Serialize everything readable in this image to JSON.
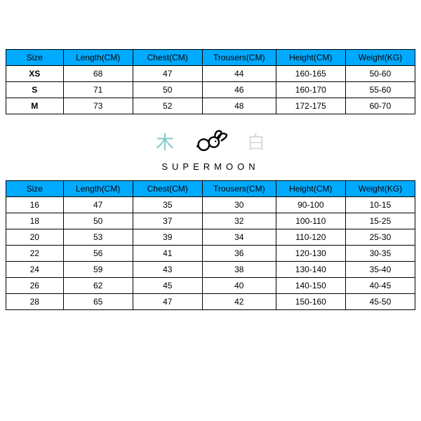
{
  "colors": {
    "header_bg": "#00aaff",
    "border": "#000000",
    "text": "#000000",
    "cjk_left_color": "#7fc9c9",
    "cjk_right_color": "#d9dadb",
    "background": "#ffffff"
  },
  "typography": {
    "cell_fontsize": 12,
    "brand_letter_spacing": 6,
    "brand_fontsize": 13,
    "cjk_fontsize": 26
  },
  "table_common": {
    "type": "table",
    "columns": [
      "Size",
      "Length(CM)",
      "Chest(CM)",
      "Trousers(CM)",
      "Height(CM)",
      "Weight(KG)"
    ],
    "col_widths_pct": [
      14,
      17,
      17,
      18,
      17,
      17
    ],
    "header_bg": "#00aaff",
    "border_color": "#000000"
  },
  "table1": {
    "rows": [
      [
        "XS",
        "68",
        "47",
        "44",
        "160-165",
        "50-60"
      ],
      [
        "S",
        "71",
        "50",
        "46",
        "160-170",
        "55-60"
      ],
      [
        "M",
        "73",
        "52",
        "48",
        "172-175",
        "60-70"
      ]
    ],
    "first_col_bold": true
  },
  "logo": {
    "cjk_left": "木",
    "cjk_right": "白",
    "brand_text": "SUPERMOON"
  },
  "table2": {
    "rows": [
      [
        "16",
        "47",
        "35",
        "30",
        "90-100",
        "10-15"
      ],
      [
        "18",
        "50",
        "37",
        "32",
        "100-110",
        "15-25"
      ],
      [
        "20",
        "53",
        "39",
        "34",
        "110-120",
        "25-30"
      ],
      [
        "22",
        "56",
        "41",
        "36",
        "120-130",
        "30-35"
      ],
      [
        "24",
        "59",
        "43",
        "38",
        "130-140",
        "35-40"
      ],
      [
        "26",
        "62",
        "45",
        "40",
        "140-150",
        "40-45"
      ],
      [
        "28",
        "65",
        "47",
        "42",
        "150-160",
        "45-50"
      ]
    ],
    "first_col_bold": false
  }
}
